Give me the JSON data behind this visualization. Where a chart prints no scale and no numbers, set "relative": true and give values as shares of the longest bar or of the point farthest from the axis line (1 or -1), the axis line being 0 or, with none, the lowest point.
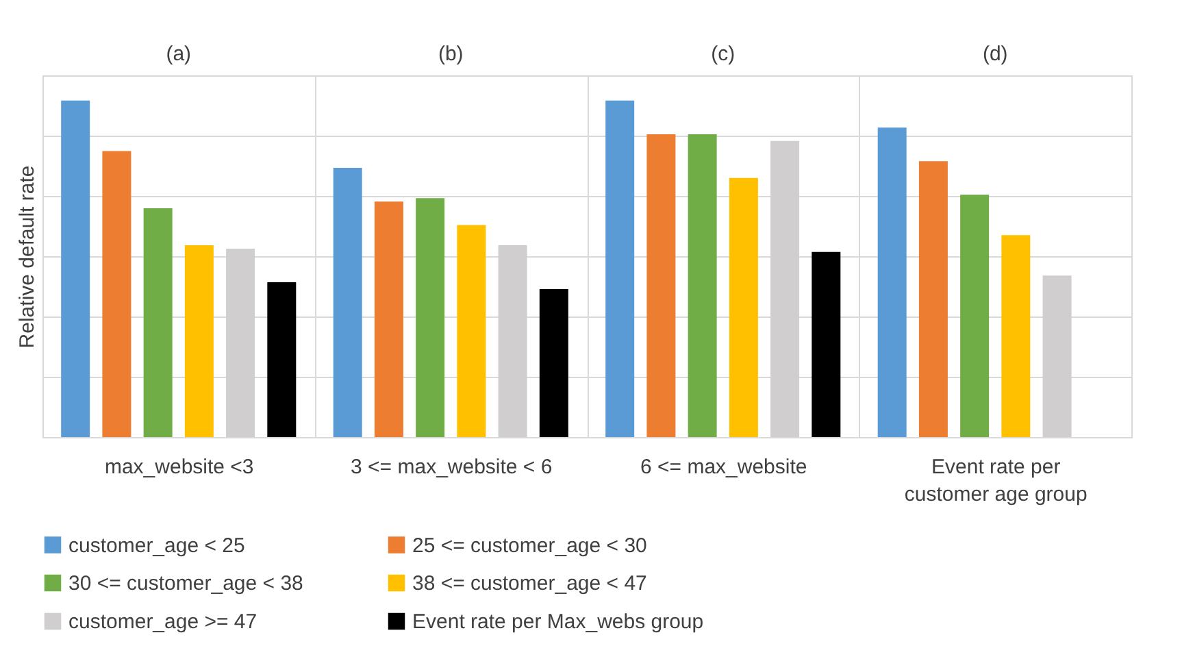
{
  "chart_data": {
    "type": "bar",
    "relative": true,
    "ylabel": "Relative default rate",
    "categories": [
      "max_website <3",
      "3 <= max_website < 6",
      "6 <= max_website",
      "Event rate per\ncustomer age group"
    ],
    "annotations": [
      "(a)",
      "(b)",
      "(c)",
      "(d)"
    ],
    "series": [
      {
        "name": "customer_age < 25",
        "color": "#5b9bd5",
        "values": [
          1.0,
          0.8,
          1.0,
          0.92
        ]
      },
      {
        "name": "25 <= customer_age < 30",
        "color": "#ed7d31",
        "values": [
          0.85,
          0.7,
          0.9,
          0.82
        ]
      },
      {
        "name": "30 <= customer_age < 38",
        "color": "#70ad47",
        "values": [
          0.68,
          0.71,
          0.9,
          0.72
        ]
      },
      {
        "name": "38 <= customer_age < 47",
        "color": "#ffc000",
        "values": [
          0.57,
          0.63,
          0.77,
          0.6
        ]
      },
      {
        "name": "customer_age >= 47",
        "color": "#d0cece",
        "values": [
          0.56,
          0.57,
          0.88,
          0.48
        ]
      },
      {
        "name": "Event rate per Max_webs group",
        "color": "#000000",
        "values": [
          0.46,
          0.44,
          0.55,
          null
        ]
      }
    ],
    "grid": "y",
    "legend": "bottom"
  }
}
